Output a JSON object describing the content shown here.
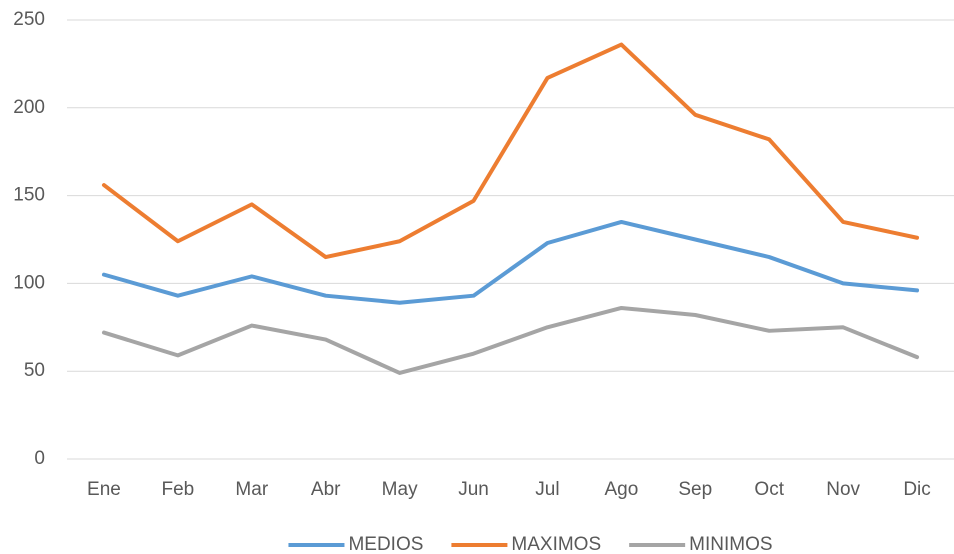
{
  "chart_data": {
    "type": "line",
    "categories": [
      "Ene",
      "Feb",
      "Mar",
      "Abr",
      "May",
      "Jun",
      "Jul",
      "Ago",
      "Sep",
      "Oct",
      "Nov",
      "Dic"
    ],
    "series": [
      {
        "name": "MEDIOS",
        "color": "#5b9bd5",
        "values": [
          105,
          93,
          104,
          93,
          89,
          93,
          123,
          135,
          125,
          115,
          100,
          96
        ]
      },
      {
        "name": "MAXIMOS",
        "color": "#ed7d31",
        "values": [
          156,
          124,
          145,
          115,
          124,
          147,
          217,
          236,
          196,
          182,
          135,
          126
        ]
      },
      {
        "name": "MINIMOS",
        "color": "#a5a5a5",
        "values": [
          72,
          59,
          76,
          68,
          49,
          60,
          75,
          86,
          82,
          73,
          75,
          58
        ]
      }
    ],
    "ylim": [
      0,
      250
    ],
    "yticks": [
      0,
      50,
      100,
      150,
      200,
      250
    ],
    "grid": true,
    "legend": "bottom"
  }
}
